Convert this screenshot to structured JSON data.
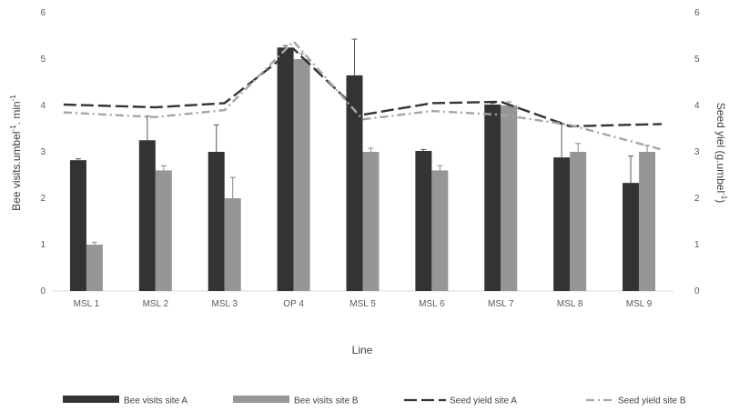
{
  "chart_data": {
    "type": "bar",
    "categories": [
      "MSL 1",
      "MSL 2",
      "MSL 3",
      "OP 4",
      "MSL 5",
      "MSL 6",
      "MSL 7",
      "MSL 8",
      "MSL 9"
    ],
    "xlabel": "Line",
    "ylabel_left": [
      "Bee visits.umbel",
      "-1",
      ". min",
      "-1"
    ],
    "ylabel_right": [
      "Seed yiel (g.umbel",
      "-1",
      ")"
    ],
    "ylim_left": [
      0,
      6
    ],
    "ylim_right": [
      0,
      6
    ],
    "yticks_left": [
      "0",
      "1",
      "2",
      "3",
      "4",
      "5",
      "6"
    ],
    "yticks_right": [
      "0",
      "1",
      "2",
      "3",
      "4",
      "5",
      "6"
    ],
    "grid": false,
    "legend_position": "bottom",
    "bar_series": [
      {
        "name": "Bee visits site A",
        "color": "#333333",
        "values": [
          2.82,
          3.25,
          3.0,
          5.25,
          4.65,
          3.02,
          4.02,
          2.88,
          2.33
        ],
        "errors": [
          0.03,
          0.52,
          0.58,
          0.04,
          0.78,
          0.03,
          0.03,
          0.72,
          0.58
        ]
      },
      {
        "name": "Bee visits site B",
        "color": "#969696",
        "values": [
          1.0,
          2.6,
          2.0,
          5.0,
          3.0,
          2.6,
          4.0,
          3.0,
          3.0
        ],
        "errors": [
          0.05,
          0.1,
          0.45,
          0.12,
          0.08,
          0.1,
          0.08,
          0.18,
          0.14
        ]
      }
    ],
    "line_series": [
      {
        "name": "Seed yield site A",
        "color": "#333333",
        "dash": "long-dash",
        "values": [
          4.02,
          3.96,
          4.05,
          5.22,
          3.8,
          4.05,
          4.08,
          3.55,
          3.6
        ]
      },
      {
        "name": "Seed yield site B",
        "color": "#a6a6a6",
        "dash": "dash-dot",
        "values": [
          3.85,
          3.75,
          3.9,
          5.38,
          3.7,
          3.88,
          3.8,
          3.58,
          3.05
        ]
      }
    ]
  }
}
